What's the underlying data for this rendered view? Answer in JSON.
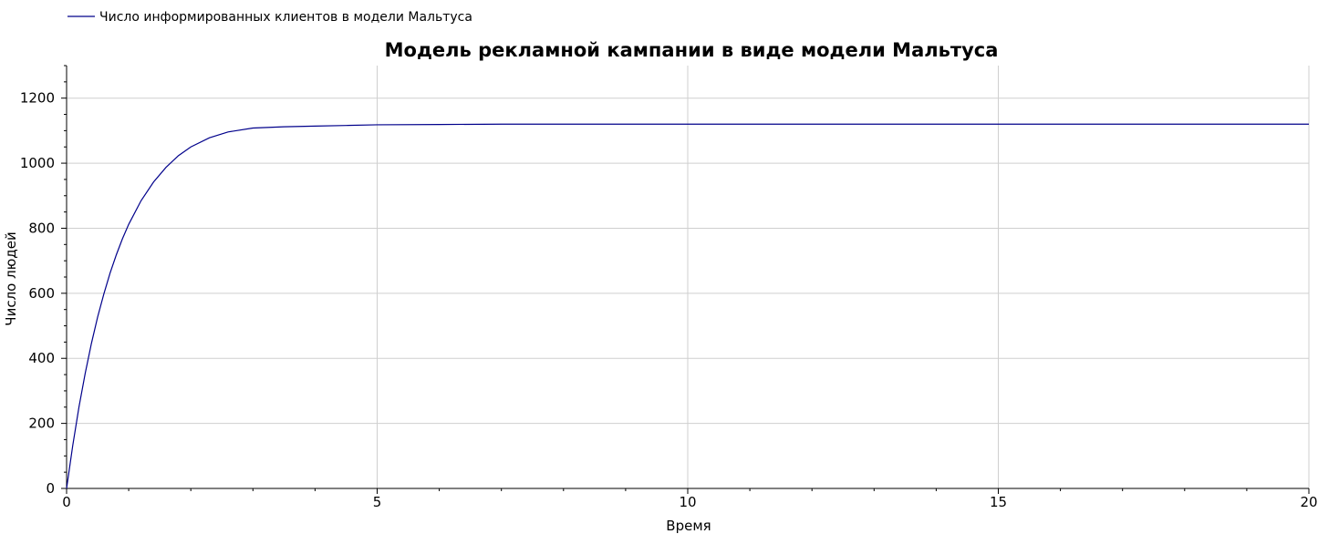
{
  "chart_data": {
    "type": "line",
    "title": "Модель рекламной кампании в виде модели Мальтуса",
    "xlabel": "Время",
    "ylabel": "Число людей",
    "xlim": [
      0,
      20
    ],
    "ylim": [
      0,
      1300
    ],
    "x_ticks": [
      "0",
      "5",
      "10",
      "15",
      "20"
    ],
    "y_ticks": [
      "0",
      "200",
      "400",
      "600",
      "800",
      "1000",
      "1200"
    ],
    "grid": true,
    "legend_position": "top-left",
    "series": [
      {
        "name": "Число информированных клиентов в модели Мальтуса",
        "color": "#00008b",
        "x": [
          0,
          0.1,
          0.2,
          0.3,
          0.4,
          0.5,
          0.6,
          0.7,
          0.8,
          0.9,
          1.0,
          1.2,
          1.4,
          1.6,
          1.8,
          2.0,
          2.3,
          2.6,
          3.0,
          3.5,
          4.0,
          4.5,
          5.0,
          6.0,
          7.0,
          8.0,
          10.0,
          12.0,
          15.0,
          20.0
        ],
        "y": [
          0,
          133,
          251,
          354,
          446,
          527,
          598,
          662,
          718,
          768,
          812,
          885,
          942,
          987,
          1023,
          1050,
          1078,
          1096,
          1108,
          1112,
          1114,
          1116,
          1118,
          1119,
          1120,
          1120,
          1120,
          1120,
          1120,
          1120
        ]
      }
    ]
  }
}
